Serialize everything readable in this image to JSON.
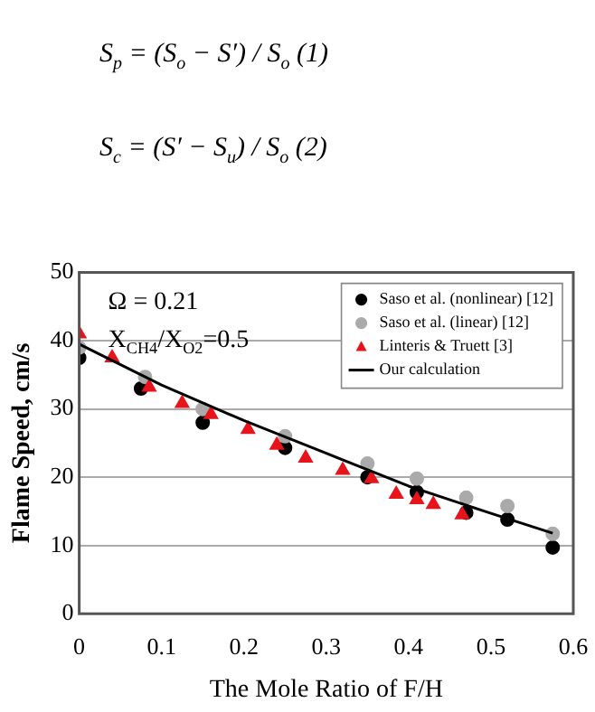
{
  "chart_data": {
    "type": "scatter",
    "xlabel": "The Mole Ratio of F/H",
    "ylabel": "Flame Speed, cm/s",
    "annotations": [
      "S$_{p}$ = (S$_{o}$ − S′) / S$_{o}$   (1)",
      "S$_{c}$ = (S′ − S$_{u}$) / S$_{o}$   (2)",
      "Ω = 0.21",
      "X$_{CH4}$/X$_{O2}$=0.5"
    ],
    "xlim": [
      0,
      0.6
    ],
    "xticks": [
      0,
      0.1,
      0.2,
      0.3,
      0.4,
      0.5,
      0.6
    ],
    "ylim": [
      0,
      50
    ],
    "yticks": [
      0,
      10,
      20,
      30,
      40,
      50
    ],
    "grid": "y",
    "legend": "top right",
    "series": [
      {
        "name": "Saso et al. (nonlinear) [12]",
        "color": "#000000",
        "marker": "circle",
        "x": [
          0,
          0.075,
          0.15,
          0.25,
          0.35,
          0.41,
          0.47,
          0.52,
          0.575
        ],
        "values": [
          37.5,
          33,
          28,
          24.3,
          20,
          17.8,
          14.8,
          13.8,
          9.7
        ]
      },
      {
        "name": "Saso et al. (linear) [12]",
        "color": "#aaaaaa",
        "marker": "circle",
        "x": [
          0,
          0.08,
          0.15,
          0.25,
          0.35,
          0.41,
          0.47,
          0.52,
          0.575
        ],
        "values": [
          39,
          34.7,
          30,
          26,
          22,
          19.8,
          17,
          15.8,
          11.7
        ]
      },
      {
        "name": "Linteris & Truett [3]",
        "color": "#e8141c",
        "marker": "triangle",
        "x": [
          0,
          0.04,
          0.085,
          0.125,
          0.16,
          0.205,
          0.24,
          0.275,
          0.32,
          0.355,
          0.385,
          0.41,
          0.43,
          0.465
        ],
        "values": [
          41,
          37.5,
          33.2,
          30.8,
          29.2,
          27,
          24.7,
          22.8,
          21,
          19.8,
          17.5,
          16.7,
          16,
          14.5
        ]
      },
      {
        "name": "Our calculation",
        "type": "line",
        "color": "#000000",
        "marker": "none",
        "x": [
          0,
          0.1,
          0.2,
          0.3,
          0.4,
          0.5,
          0.575
        ],
        "values": [
          39.5,
          33.5,
          28.3,
          23.5,
          18.7,
          14.7,
          11.8
        ]
      }
    ]
  }
}
